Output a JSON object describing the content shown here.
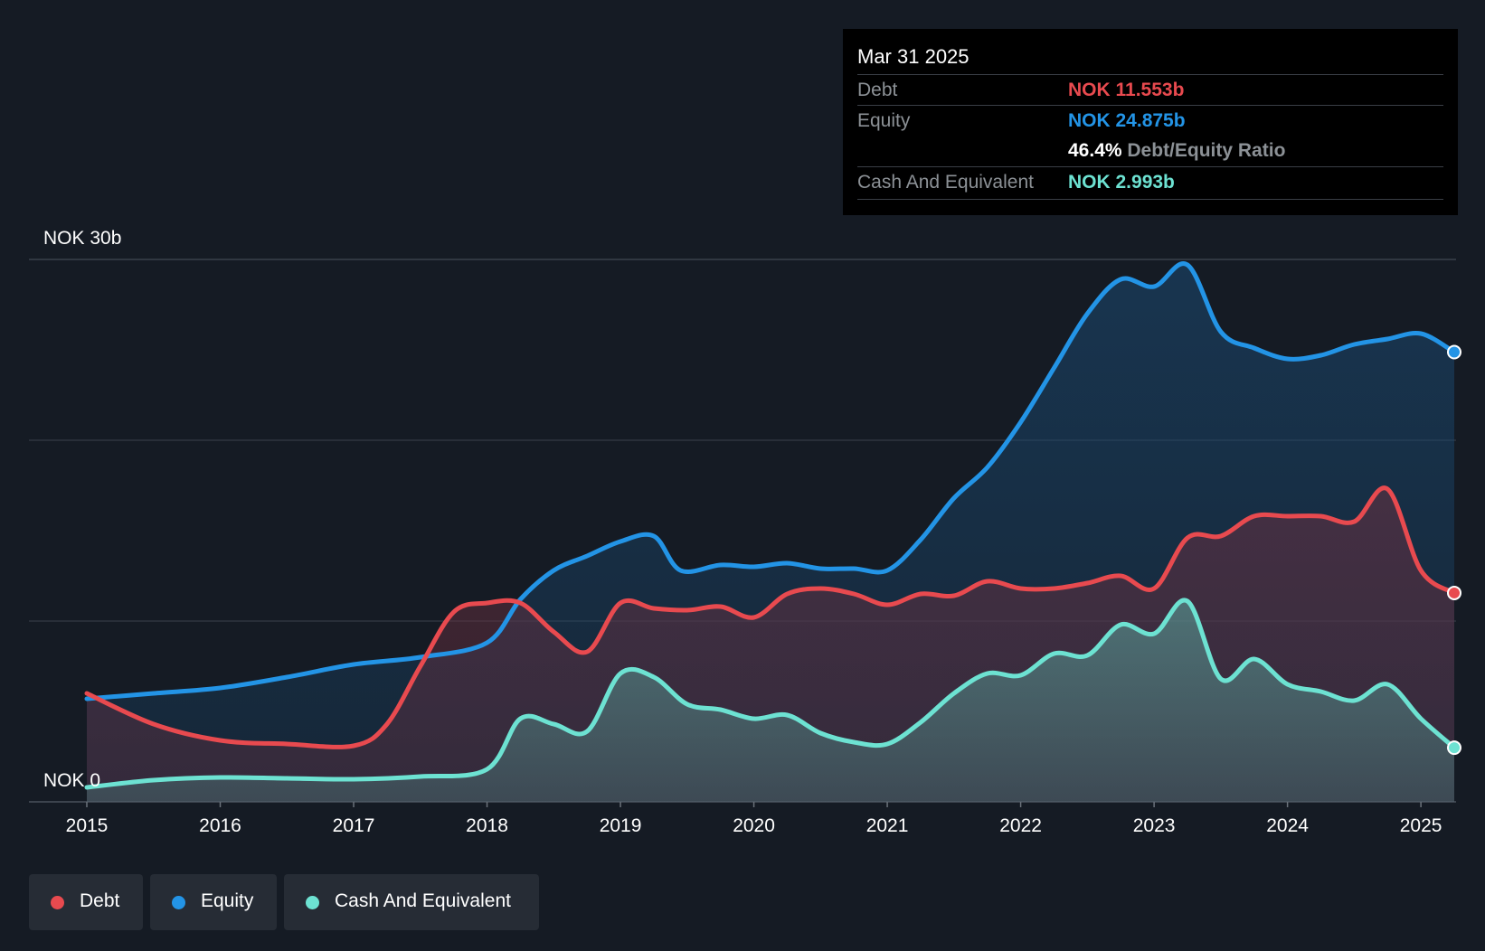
{
  "tooltip": {
    "date": "Mar 31 2025",
    "debt_label": "Debt",
    "debt_value": "NOK 11.553b",
    "equity_label": "Equity",
    "equity_value": "NOK 24.875b",
    "ratio_value": "46.4%",
    "ratio_label": "Debt/Equity Ratio",
    "cash_label": "Cash And Equivalent",
    "cash_value": "NOK 2.993b"
  },
  "legend": [
    {
      "label": "Debt",
      "color": "#e84a4f"
    },
    {
      "label": "Equity",
      "color": "#2394e6"
    },
    {
      "label": "Cash And Equivalent",
      "color": "#6de2d2"
    }
  ],
  "chart_data": {
    "type": "area",
    "title": "",
    "unit": "NOK b",
    "y_top_label": "NOK 30b",
    "y_bottom_label": "NOK 0",
    "ylim": [
      0,
      30
    ],
    "xlim": [
      2015.0,
      2025.25
    ],
    "x_ticks": [
      "2015",
      "2016",
      "2017",
      "2018",
      "2019",
      "2020",
      "2021",
      "2022",
      "2023",
      "2024",
      "2025"
    ],
    "series": [
      {
        "name": "Equity",
        "color": "#2394e6",
        "x": [
          2015.0,
          2015.5,
          2016.0,
          2016.5,
          2017.0,
          2017.5,
          2018.0,
          2018.25,
          2018.5,
          2018.75,
          2019.0,
          2019.25,
          2019.45,
          2019.75,
          2020.0,
          2020.25,
          2020.5,
          2020.75,
          2021.0,
          2021.25,
          2021.5,
          2021.75,
          2022.0,
          2022.25,
          2022.5,
          2022.75,
          2023.0,
          2023.25,
          2023.5,
          2023.75,
          2024.0,
          2024.25,
          2024.5,
          2024.75,
          2025.0,
          2025.25
        ],
        "values": [
          5.7,
          6.0,
          6.3,
          6.9,
          7.6,
          8.0,
          8.8,
          11.2,
          12.8,
          13.6,
          14.4,
          14.7,
          12.8,
          13.1,
          13.0,
          13.2,
          12.9,
          12.9,
          12.8,
          14.5,
          16.8,
          18.5,
          21.0,
          24.0,
          27.0,
          28.9,
          28.5,
          29.7,
          26.0,
          25.1,
          24.5,
          24.7,
          25.3,
          25.6,
          25.9,
          24.875
        ]
      },
      {
        "name": "Debt",
        "color": "#e84a4f",
        "x": [
          2015.0,
          2015.5,
          2016.0,
          2016.5,
          2017.0,
          2017.25,
          2017.5,
          2017.75,
          2018.0,
          2018.25,
          2018.5,
          2018.75,
          2019.0,
          2019.25,
          2019.5,
          2019.75,
          2020.0,
          2020.25,
          2020.5,
          2020.75,
          2021.0,
          2021.25,
          2021.5,
          2021.75,
          2022.0,
          2022.25,
          2022.5,
          2022.75,
          2023.0,
          2023.25,
          2023.5,
          2023.75,
          2024.0,
          2024.25,
          2024.5,
          2024.75,
          2025.0,
          2025.25
        ],
        "values": [
          6.0,
          4.3,
          3.4,
          3.2,
          3.1,
          4.3,
          7.5,
          10.5,
          11.0,
          11.0,
          9.4,
          8.3,
          11.0,
          10.7,
          10.6,
          10.8,
          10.2,
          11.5,
          11.8,
          11.5,
          10.9,
          11.5,
          11.4,
          12.2,
          11.8,
          11.8,
          12.1,
          12.5,
          11.8,
          14.6,
          14.7,
          15.8,
          15.8,
          15.8,
          15.5,
          17.3,
          12.8,
          11.553
        ]
      },
      {
        "name": "Cash And Equivalent",
        "color": "#6de2d2",
        "x": [
          2015.0,
          2015.5,
          2016.0,
          2016.5,
          2017.0,
          2017.5,
          2018.0,
          2018.25,
          2018.5,
          2018.75,
          2019.0,
          2019.25,
          2019.5,
          2019.75,
          2020.0,
          2020.25,
          2020.5,
          2020.75,
          2021.0,
          2021.25,
          2021.5,
          2021.75,
          2022.0,
          2022.25,
          2022.5,
          2022.75,
          2023.0,
          2023.25,
          2023.5,
          2023.75,
          2024.0,
          2024.25,
          2024.5,
          2024.75,
          2025.0,
          2025.25
        ],
        "values": [
          0.8,
          1.2,
          1.35,
          1.3,
          1.25,
          1.4,
          1.8,
          4.6,
          4.3,
          3.9,
          7.1,
          6.9,
          5.4,
          5.1,
          4.6,
          4.8,
          3.8,
          3.3,
          3.2,
          4.4,
          6.0,
          7.1,
          7.0,
          8.2,
          8.1,
          9.8,
          9.3,
          11.1,
          6.8,
          7.9,
          6.5,
          6.1,
          5.6,
          6.5,
          4.6,
          2.993
        ]
      }
    ]
  }
}
